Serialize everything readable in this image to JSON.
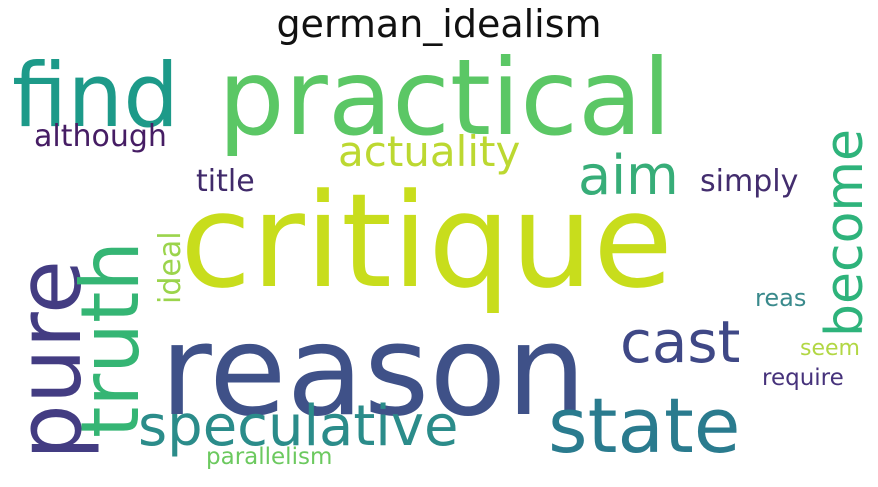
{
  "title": "german_idealism",
  "words": [
    {
      "text": "critique",
      "color": "#c8dd1c"
    },
    {
      "text": "reason",
      "color": "#3f5188"
    },
    {
      "text": "practical",
      "color": "#5bc765"
    },
    {
      "text": "find",
      "color": "#1d9a89"
    },
    {
      "text": "pure",
      "color": "#433c82"
    },
    {
      "text": "truth",
      "color": "#35b574"
    },
    {
      "text": "state",
      "color": "#2a7b8e"
    },
    {
      "text": "speculative",
      "color": "#2b8c8a"
    },
    {
      "text": "become",
      "color": "#2eb37b"
    },
    {
      "text": "cast",
      "color": "#3f4886"
    },
    {
      "text": "aim",
      "color": "#37ad78"
    },
    {
      "text": "actuality",
      "color": "#bcd831"
    },
    {
      "text": "although",
      "color": "#461d64"
    },
    {
      "text": "title",
      "color": "#402a6a"
    },
    {
      "text": "simply",
      "color": "#432d6e"
    },
    {
      "text": "ideal",
      "color": "#9bd44c"
    },
    {
      "text": "reas",
      "color": "#3a8a8c"
    },
    {
      "text": "seem",
      "color": "#b2d744"
    },
    {
      "text": "require",
      "color": "#46327b"
    },
    {
      "text": "parallelism",
      "color": "#6cc95f"
    }
  ]
}
